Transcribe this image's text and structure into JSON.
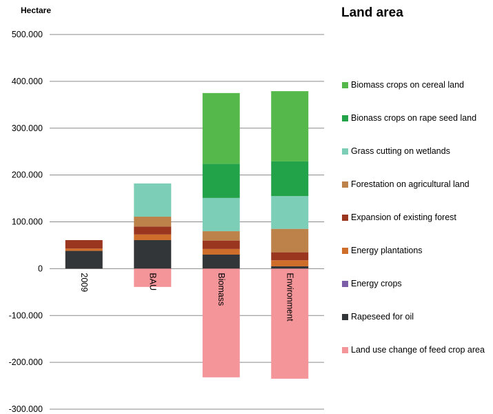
{
  "chart_data": {
    "type": "bar",
    "stacked": true,
    "title": "Land area",
    "ylabel": "Hectare",
    "xlabel": "",
    "ylim": [
      -300000,
      500000
    ],
    "yticks": [
      "500.000",
      "400.000",
      "300.000",
      "200.000",
      "100.000",
      "0",
      "-100.000",
      "-200.000",
      "-300.000"
    ],
    "grid": true,
    "legend_position": "right",
    "categories": [
      "2009",
      "BAU",
      "Biomass",
      "Environment"
    ],
    "series": [
      {
        "name": "Rapeseed for oil",
        "color": "#333638",
        "values": [
          38000,
          61000,
          30000,
          5000
        ]
      },
      {
        "name": "Energy crops",
        "color": "#7b5ea7",
        "values": [
          0,
          0,
          0,
          0
        ]
      },
      {
        "name": "Energy plantations",
        "color": "#cf6d2a",
        "values": [
          5000,
          12000,
          12000,
          13000
        ]
      },
      {
        "name": "Expansion of existing forest",
        "color": "#9a3520",
        "values": [
          18000,
          17000,
          18000,
          17000
        ]
      },
      {
        "name": "Forestation on agricultural land",
        "color": "#bd814a",
        "values": [
          0,
          21000,
          20000,
          50000
        ]
      },
      {
        "name": "Grass cutting on wetlands",
        "color": "#7dceb7",
        "values": [
          0,
          71000,
          71000,
          70000
        ]
      },
      {
        "name": "Bionass crops on rape seed land",
        "color": "#22a34a",
        "values": [
          0,
          0,
          73000,
          74000
        ]
      },
      {
        "name": "Biomass crops on cereal land",
        "color": "#55b84a",
        "values": [
          0,
          0,
          151000,
          150000
        ]
      },
      {
        "name": "Land use change of feed crop area",
        "color": "#f4959a",
        "values": [
          0,
          -39000,
          -232000,
          -235000
        ]
      }
    ],
    "legend_order": [
      "Biomass crops on cereal land",
      "Bionass crops on rape seed land",
      "Grass cutting on wetlands",
      "Forestation on agricultural land",
      "Expansion of existing forest",
      "Energy plantations",
      "Energy crops",
      "Rapeseed for oil",
      "Land use change of feed crop area"
    ]
  }
}
